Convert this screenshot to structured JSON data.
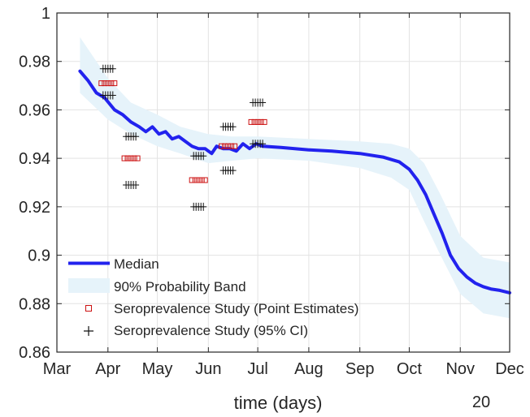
{
  "chart_data": {
    "type": "line",
    "xlabel": "time (days)",
    "year_label": "20",
    "ylim": [
      0.86,
      1
    ],
    "y_ticks": [
      "0.86",
      "0.88",
      "0.9",
      "0.92",
      "0.94",
      "0.96",
      "0.98",
      "1"
    ],
    "x_ticks": [
      "Mar",
      "Apr",
      "May",
      "Jun",
      "Jul",
      "Aug",
      "Sep",
      "Oct",
      "Nov",
      "Dec"
    ],
    "xlim": [
      "2020-03-01",
      "2020-12-01"
    ],
    "grid": true,
    "legend_position": "lower-left",
    "colors": {
      "median": "#2222ee",
      "band": "#e6f3fa",
      "point": "#cc1111",
      "ci": "#111111",
      "grid": "#e3e3e3",
      "axis": "#262626"
    },
    "series": [
      {
        "name": "Median",
        "style": "line",
        "points": [
          [
            "2020-03-15",
            0.976
          ],
          [
            "2020-03-20",
            0.972
          ],
          [
            "2020-03-25",
            0.967
          ],
          [
            "2020-03-30",
            0.965
          ],
          [
            "2020-04-05",
            0.96
          ],
          [
            "2020-04-10",
            0.958
          ],
          [
            "2020-04-15",
            0.955
          ],
          [
            "2020-04-20",
            0.953
          ],
          [
            "2020-04-24",
            0.951
          ],
          [
            "2020-04-28",
            0.953
          ],
          [
            "2020-05-02",
            0.95
          ],
          [
            "2020-05-06",
            0.951
          ],
          [
            "2020-05-10",
            0.948
          ],
          [
            "2020-05-14",
            0.949
          ],
          [
            "2020-05-18",
            0.947
          ],
          [
            "2020-05-22",
            0.945
          ],
          [
            "2020-05-26",
            0.944
          ],
          [
            "2020-05-30",
            0.944
          ],
          [
            "2020-06-03",
            0.942
          ],
          [
            "2020-06-06",
            0.945
          ],
          [
            "2020-06-10",
            0.944
          ],
          [
            "2020-06-14",
            0.944
          ],
          [
            "2020-06-18",
            0.943
          ],
          [
            "2020-06-22",
            0.946
          ],
          [
            "2020-06-26",
            0.944
          ],
          [
            "2020-06-30",
            0.946
          ],
          [
            "2020-07-04",
            0.945
          ],
          [
            "2020-07-15",
            0.9445
          ],
          [
            "2020-08-01",
            0.9435
          ],
          [
            "2020-08-15",
            0.943
          ],
          [
            "2020-09-01",
            0.942
          ],
          [
            "2020-09-15",
            0.9405
          ],
          [
            "2020-09-25",
            0.9385
          ],
          [
            "2020-10-01",
            0.9355
          ],
          [
            "2020-10-06",
            0.931
          ],
          [
            "2020-10-11",
            0.925
          ],
          [
            "2020-10-16",
            0.917
          ],
          [
            "2020-10-21",
            0.909
          ],
          [
            "2020-10-26",
            0.9
          ],
          [
            "2020-10-31",
            0.8945
          ],
          [
            "2020-11-05",
            0.891
          ],
          [
            "2020-11-10",
            0.8885
          ],
          [
            "2020-11-15",
            0.887
          ],
          [
            "2020-11-20",
            0.886
          ],
          [
            "2020-11-25",
            0.8855
          ],
          [
            "2020-12-01",
            0.8845
          ]
        ]
      },
      {
        "name": "90% Probability Band",
        "style": "band",
        "points": [
          [
            "2020-03-15",
            0.967,
            0.99
          ],
          [
            "2020-04-01",
            0.956,
            0.973
          ],
          [
            "2020-04-15",
            0.95,
            0.963
          ],
          [
            "2020-05-01",
            0.945,
            0.958
          ],
          [
            "2020-05-15",
            0.942,
            0.953
          ],
          [
            "2020-06-01",
            0.938,
            0.95
          ],
          [
            "2020-06-15",
            0.939,
            0.949
          ],
          [
            "2020-07-01",
            0.94,
            0.949
          ],
          [
            "2020-08-01",
            0.939,
            0.948
          ],
          [
            "2020-09-01",
            0.936,
            0.947
          ],
          [
            "2020-09-20",
            0.932,
            0.946
          ],
          [
            "2020-10-01",
            0.927,
            0.944
          ],
          [
            "2020-10-10",
            0.914,
            0.938
          ],
          [
            "2020-10-20",
            0.9,
            0.925
          ],
          [
            "2020-11-01",
            0.884,
            0.908
          ],
          [
            "2020-11-15",
            0.876,
            0.899
          ],
          [
            "2020-12-01",
            0.874,
            0.897
          ]
        ]
      },
      {
        "name": "Seroprevalence Study (Point Estimates)",
        "style": "square-markers",
        "points": [
          [
            "2020-04-01",
            0.971
          ],
          [
            "2020-04-15",
            0.94
          ],
          [
            "2020-05-26",
            0.931
          ],
          [
            "2020-06-13",
            0.945
          ],
          [
            "2020-07-01",
            0.955
          ]
        ]
      },
      {
        "name": "Seroprevalence Study (95% CI)",
        "style": "plus-markers",
        "points": [
          [
            "2020-04-01",
            0.977
          ],
          [
            "2020-04-01",
            0.966
          ],
          [
            "2020-04-15",
            0.949
          ],
          [
            "2020-04-15",
            0.929
          ],
          [
            "2020-05-26",
            0.941
          ],
          [
            "2020-05-26",
            0.92
          ],
          [
            "2020-06-13",
            0.953
          ],
          [
            "2020-06-13",
            0.935
          ],
          [
            "2020-07-01",
            0.963
          ],
          [
            "2020-07-01",
            0.946
          ]
        ]
      }
    ]
  }
}
